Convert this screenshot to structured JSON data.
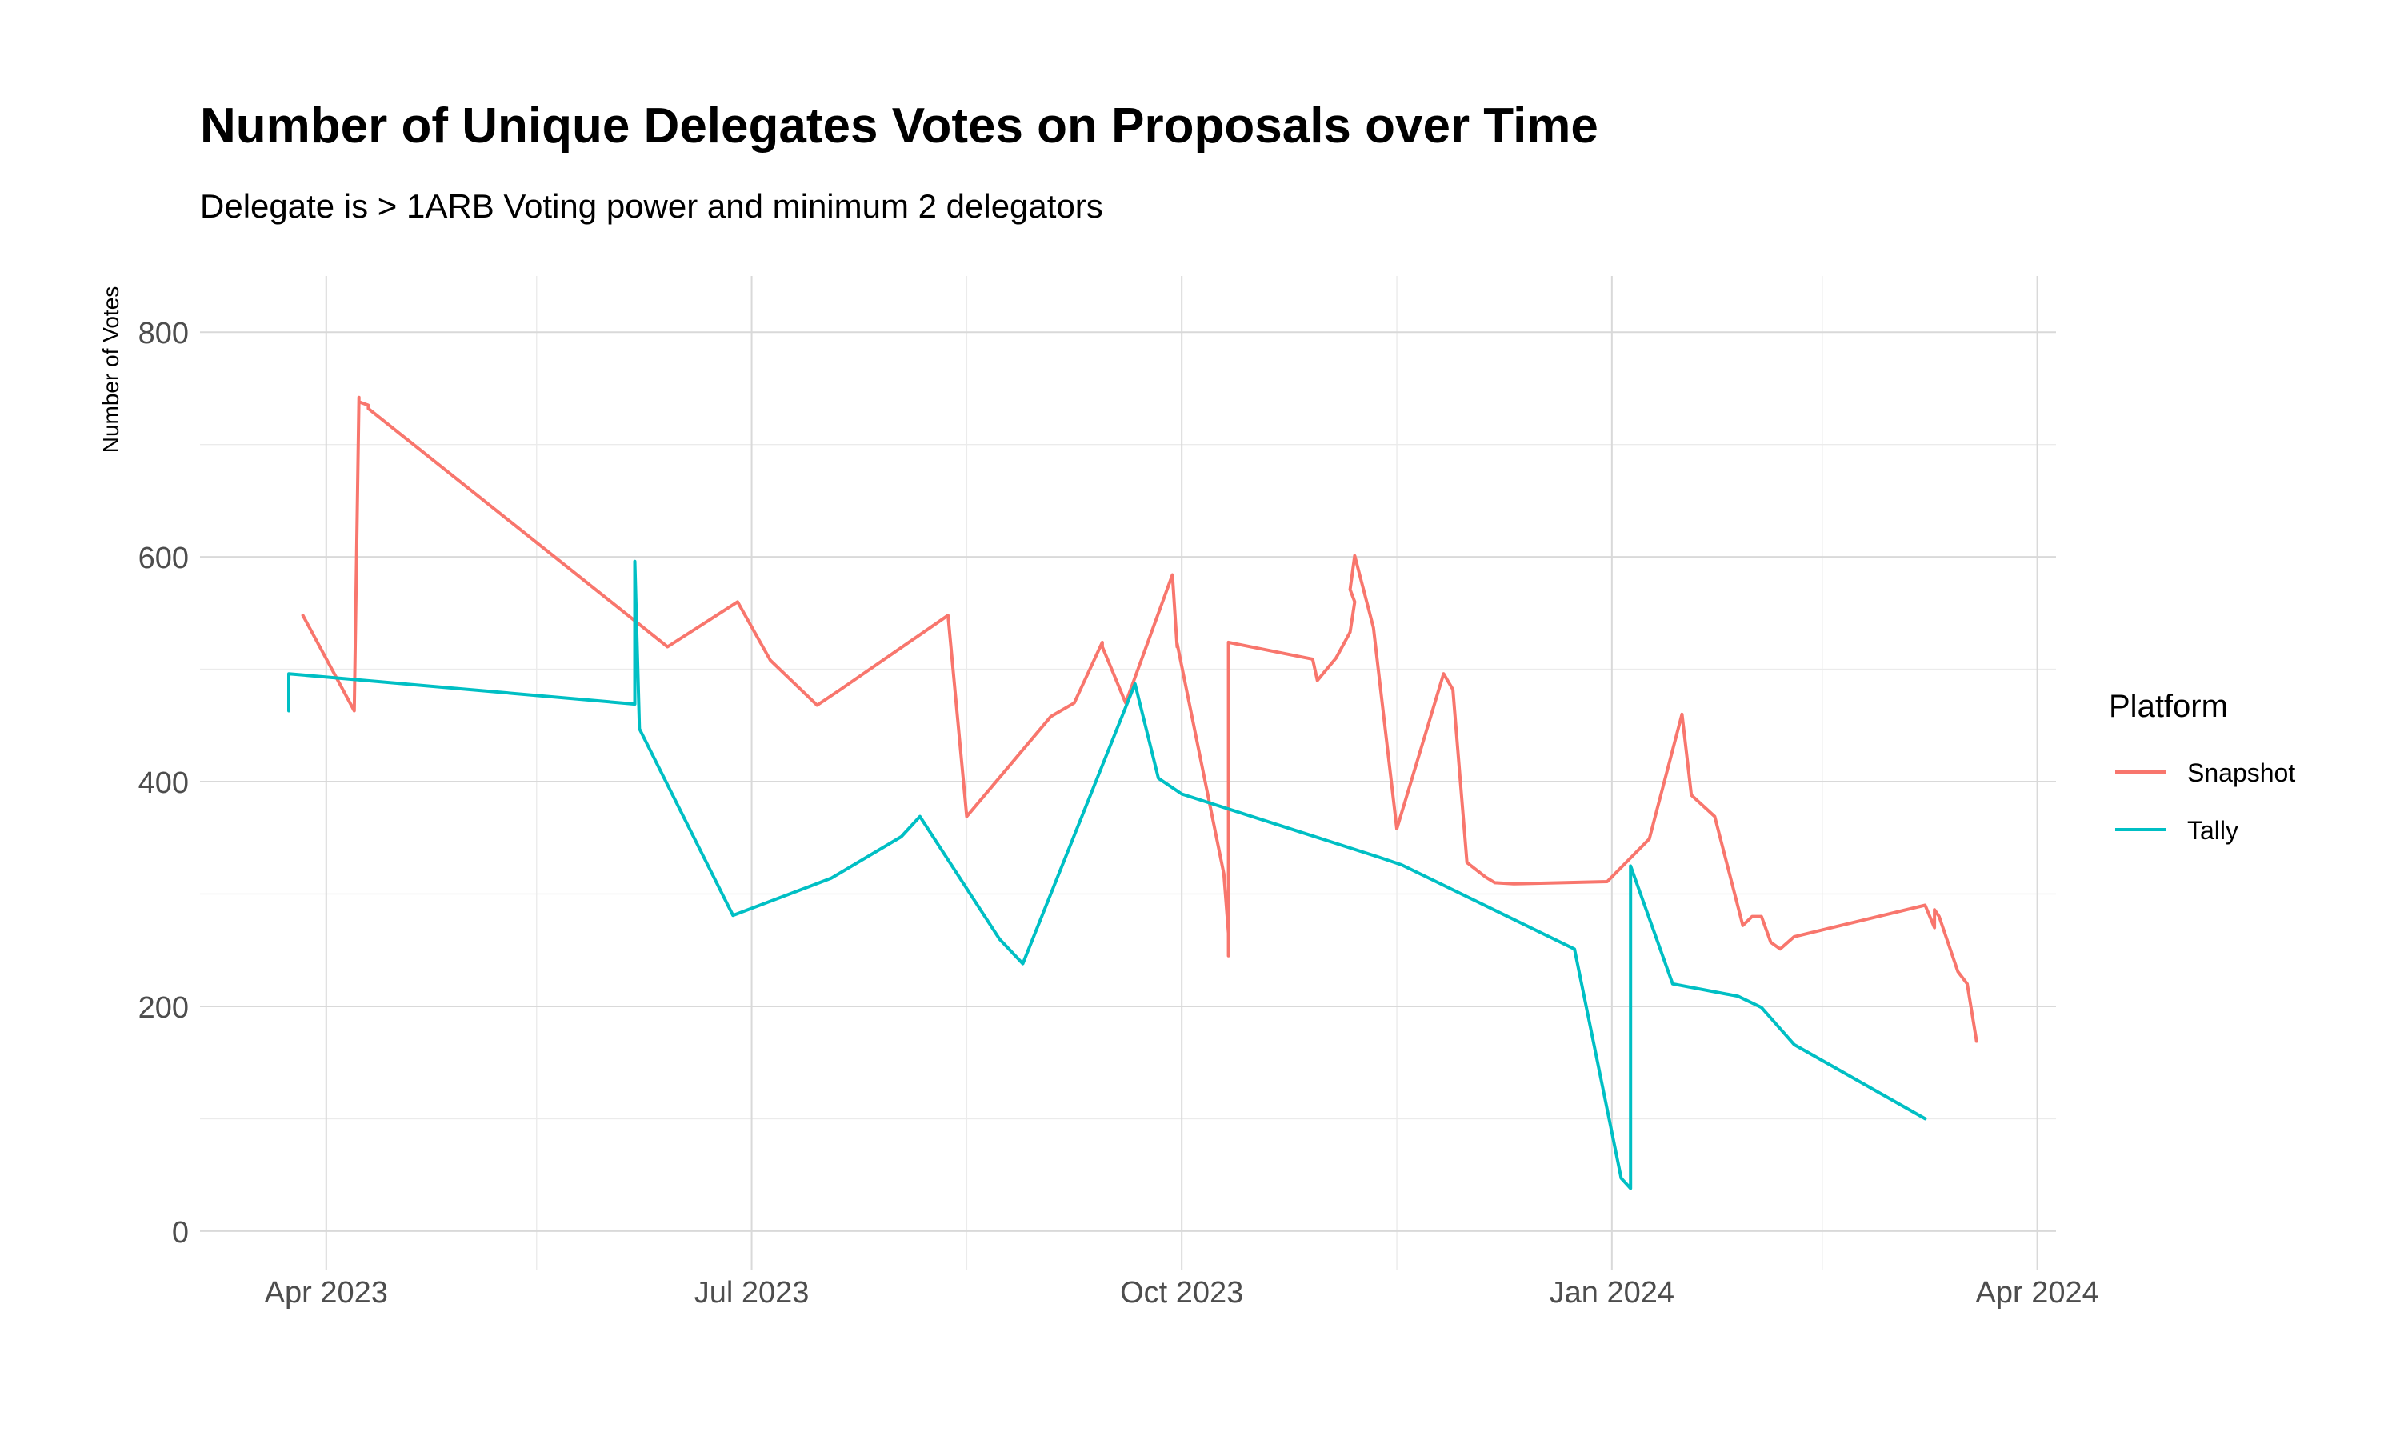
{
  "chart_data": {
    "type": "line",
    "title": "Number of Unique Delegates Votes on Proposals over Time",
    "subtitle": "Delegate is > 1ARB Voting power and minimum 2 delegators",
    "xlabel": "",
    "ylabel": "Number of Votes",
    "x_axis_type": "date",
    "xlim": [
      "2023-03-05",
      "2024-04-05"
    ],
    "ylim": [
      -35,
      850
    ],
    "x_ticks": [
      {
        "value": "2023-04-01",
        "label": "Apr 2023"
      },
      {
        "value": "2023-07-01",
        "label": "Jul 2023"
      },
      {
        "value": "2023-10-01",
        "label": "Oct 2023"
      },
      {
        "value": "2024-01-01",
        "label": "Jan 2024"
      },
      {
        "value": "2024-04-01",
        "label": "Apr 2024"
      }
    ],
    "x_minor_ticks": [
      "2023-05-16",
      "2023-08-16",
      "2023-11-16",
      "2024-02-15"
    ],
    "y_ticks": [
      0,
      200,
      400,
      600,
      800
    ],
    "y_minor_ticks": [
      100,
      300,
      500,
      700
    ],
    "grid": true,
    "legend": {
      "title": "Platform",
      "position": "right"
    },
    "series": [
      {
        "name": "Snapshot",
        "color": "#F8766D",
        "x": [
          "2023-03-27",
          "2023-04-07",
          "2023-04-08",
          "2023-04-08",
          "2023-04-10",
          "2023-04-10",
          "2023-06-13",
          "2023-06-28",
          "2023-07-05",
          "2023-07-15",
          "2023-07-20",
          "2023-08-12",
          "2023-08-16",
          "2023-09-03",
          "2023-09-08",
          "2023-09-14",
          "2023-09-14",
          "2023-09-19",
          "2023-09-29",
          "2023-09-30",
          "2023-09-30",
          "2023-10-10",
          "2023-10-10",
          "2023-10-11",
          "2023-10-11",
          "2023-10-11",
          "2023-10-11",
          "2023-10-11",
          "2023-10-11",
          "2023-10-11",
          "2023-10-11",
          "2023-10-29",
          "2023-10-30",
          "2023-11-03",
          "2023-11-06",
          "2023-11-07",
          "2023-11-06",
          "2023-11-07",
          "2023-11-11",
          "2023-11-16",
          "2023-11-26",
          "2023-11-28",
          "2023-12-01",
          "2023-12-05",
          "2023-12-07",
          "2023-12-11",
          "2023-12-31",
          "2024-01-09",
          "2024-01-16",
          "2024-01-18",
          "2024-01-23",
          "2024-01-29",
          "2024-01-31",
          "2024-02-02",
          "2024-02-04",
          "2024-02-06",
          "2024-02-09",
          "2024-03-08",
          "2024-03-10",
          "2024-03-10",
          "2024-03-11",
          "2024-03-15",
          "2024-03-17",
          "2024-03-19"
        ],
        "values": [
          548,
          463,
          742,
          738,
          735,
          732,
          520,
          560,
          508,
          468,
          482,
          548,
          369,
          458,
          470,
          524,
          520,
          470,
          584,
          520,
          523,
          318,
          318,
          265,
          250,
          300,
          245,
          524,
          524,
          524,
          524,
          509,
          490,
          510,
          533,
          560,
          571,
          601,
          537,
          358,
          496,
          482,
          328,
          315,
          310,
          309,
          311,
          349,
          460,
          388,
          369,
          272,
          280,
          280,
          257,
          251,
          262,
          290,
          270,
          286,
          280,
          231,
          220,
          169
        ]
      },
      {
        "name": "Tally",
        "color": "#00BFC4",
        "x": [
          "2023-03-24",
          "2023-03-24",
          "2023-06-06",
          "2023-06-06",
          "2023-06-07",
          "2023-06-27",
          "2023-07-18",
          "2023-08-02",
          "2023-08-06",
          "2023-08-23",
          "2023-08-28",
          "2023-09-21",
          "2023-09-26",
          "2023-10-01",
          "2023-11-12",
          "2023-11-17",
          "2023-12-24",
          "2024-01-03",
          "2024-01-05",
          "2024-01-05",
          "2024-01-14",
          "2024-01-28",
          "2024-02-02",
          "2024-02-09",
          "2024-03-08"
        ],
        "values": [
          463,
          496,
          469,
          596,
          447,
          281,
          314,
          351,
          369,
          260,
          238,
          487,
          403,
          389,
          333,
          326,
          251,
          47,
          38,
          325,
          220,
          209,
          199,
          166,
          100
        ]
      }
    ]
  }
}
